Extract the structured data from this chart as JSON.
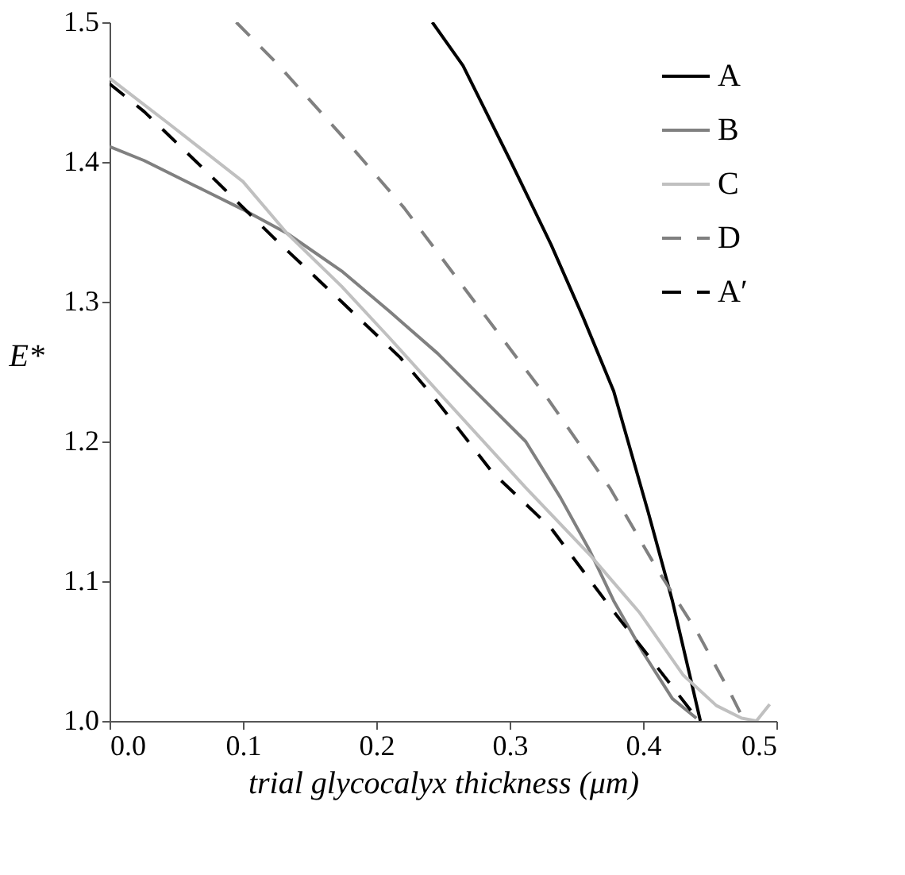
{
  "chart_data": {
    "type": "line",
    "xlabel": "trial glycocalyx thickness (μm)",
    "ylabel": "E*",
    "xlim": [
      0,
      0.5
    ],
    "ylim": [
      1.0,
      1.5
    ],
    "xticks": [
      {
        "value": 0,
        "label": "0.0"
      },
      0.1,
      0.2,
      0.3,
      0.4,
      0.5
    ],
    "yticks": [
      {
        "value": 1,
        "label": "1.0"
      },
      1.1,
      1.2,
      1.3,
      1.4,
      1.5
    ],
    "grid": false,
    "legend": "top right",
    "series": [
      {
        "name": "A",
        "color": "#000000",
        "line_style": "solid",
        "x": [
          0.242,
          0.265,
          0.301,
          0.331,
          0.355,
          0.378,
          0.404,
          0.422,
          0.435,
          0.443
        ],
        "values": [
          1.5,
          1.469,
          1.4,
          1.341,
          1.289,
          1.236,
          1.149,
          1.086,
          1.033,
          1.0
        ]
      },
      {
        "name": "B",
        "color": "#808080",
        "line_style": "solid",
        "x": [
          0,
          0.026,
          0.064,
          0.1,
          0.133,
          0.174,
          0.21,
          0.246,
          0.27,
          0.312,
          0.338,
          0.36,
          0.378,
          0.4,
          0.422,
          0.44
        ],
        "values": [
          1.411,
          1.401,
          1.383,
          1.366,
          1.349,
          1.322,
          1.293,
          1.263,
          1.24,
          1.2,
          1.16,
          1.122,
          1.086,
          1.049,
          1.016,
          1.002
        ]
      },
      {
        "name": "C",
        "color": "#c0c0c0",
        "line_style": "solid",
        "x": [
          0,
          0.045,
          0.1,
          0.133,
          0.174,
          0.21,
          0.245,
          0.312,
          0.36,
          0.397,
          0.43,
          0.455,
          0.474,
          0.485,
          0.495
        ],
        "values": [
          1.46,
          1.427,
          1.386,
          1.349,
          1.311,
          1.274,
          1.237,
          1.167,
          1.119,
          1.078,
          1.033,
          1.011,
          1.002,
          1.0,
          1.012
        ]
      },
      {
        "name": "D",
        "color": "#808080",
        "line_style": "dashed",
        "x": [
          0.095,
          0.125,
          0.174,
          0.221,
          0.265,
          0.329,
          0.375,
          0.411,
          0.441,
          0.466,
          0.476
        ],
        "values": [
          1.5,
          1.471,
          1.419,
          1.367,
          1.311,
          1.23,
          1.167,
          1.108,
          1.063,
          1.019,
          1.0
        ]
      },
      {
        "name": "A′",
        "color": "#000000",
        "line_style": "dashed",
        "x": [
          0,
          0.026,
          0.075,
          0.125,
          0.174,
          0.218,
          0.242,
          0.287,
          0.331,
          0.375,
          0.411,
          0.437,
          0.44
        ],
        "values": [
          1.456,
          1.436,
          1.391,
          1.344,
          1.3,
          1.26,
          1.233,
          1.178,
          1.138,
          1.082,
          1.038,
          1.006,
          1.0
        ]
      }
    ]
  }
}
